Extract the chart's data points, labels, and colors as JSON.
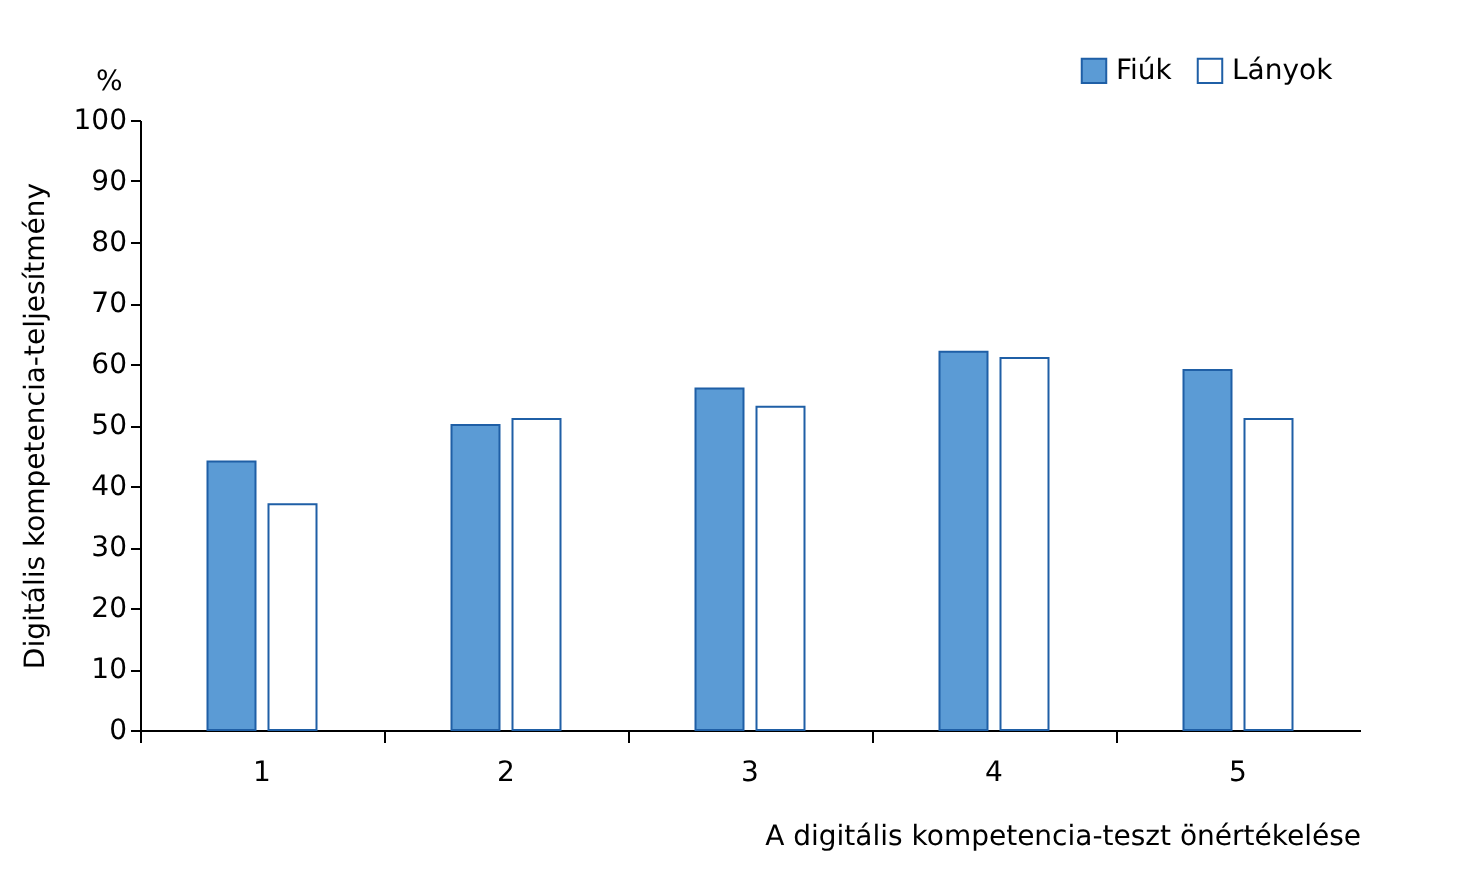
{
  "chart_data": {
    "type": "bar",
    "ylabel": "Digitális kompetencia-teljesítmény",
    "xlabel": "A digitális kompetencia-teszt önértékelése",
    "annotations": [
      "%"
    ],
    "categories": [
      "1",
      "2",
      "3",
      "4",
      "5"
    ],
    "series": [
      {
        "name": "Fiúk",
        "color": "#5b9bd5",
        "values": [
          44,
          50,
          56,
          62,
          59
        ]
      },
      {
        "name": "Lányok",
        "color": "#ffffff",
        "values": [
          37,
          51,
          53,
          61,
          51
        ]
      }
    ],
    "ylim": [
      0,
      100
    ],
    "yticks": [
      0,
      10,
      20,
      30,
      40,
      50,
      60,
      70,
      80,
      90,
      100
    ],
    "grid": false,
    "legend": "top right"
  }
}
